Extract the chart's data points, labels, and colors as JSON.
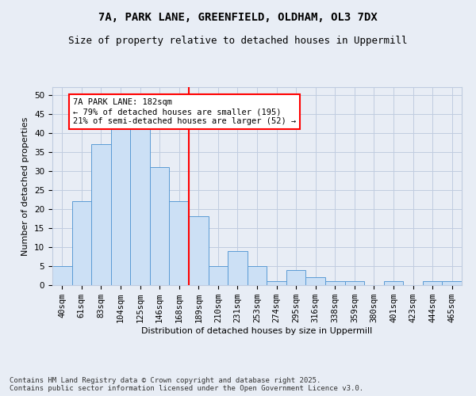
{
  "title1": "7A, PARK LANE, GREENFIELD, OLDHAM, OL3 7DX",
  "title2": "Size of property relative to detached houses in Uppermill",
  "xlabel": "Distribution of detached houses by size in Uppermill",
  "ylabel": "Number of detached properties",
  "bar_values": [
    5,
    22,
    37,
    42,
    41,
    31,
    22,
    18,
    5,
    9,
    5,
    1,
    4,
    2,
    1,
    1,
    0,
    1,
    0,
    1,
    1
  ],
  "bar_labels": [
    "40sqm",
    "61sqm",
    "83sqm",
    "104sqm",
    "125sqm",
    "146sqm",
    "168sqm",
    "189sqm",
    "210sqm",
    "231sqm",
    "253sqm",
    "274sqm",
    "295sqm",
    "316sqm",
    "338sqm",
    "359sqm",
    "380sqm",
    "401sqm",
    "423sqm",
    "444sqm",
    "465sqm"
  ],
  "bar_color": "#cce0f5",
  "bar_edge_color": "#5b9bd5",
  "vline_color": "red",
  "annotation_text": "7A PARK LANE: 182sqm\n← 79% of detached houses are smaller (195)\n21% of semi-detached houses are larger (52) →",
  "annotation_box_color": "white",
  "annotation_box_edge_color": "red",
  "ylim": [
    0,
    52
  ],
  "yticks": [
    0,
    5,
    10,
    15,
    20,
    25,
    30,
    35,
    40,
    45,
    50
  ],
  "grid_color": "#c0cce0",
  "background_color": "#e8edf5",
  "footer_text": "Contains HM Land Registry data © Crown copyright and database right 2025.\nContains public sector information licensed under the Open Government Licence v3.0.",
  "title_fontsize": 10,
  "subtitle_fontsize": 9,
  "axis_label_fontsize": 8,
  "tick_fontsize": 7.5,
  "annotation_fontsize": 7.5,
  "footer_fontsize": 6.5
}
